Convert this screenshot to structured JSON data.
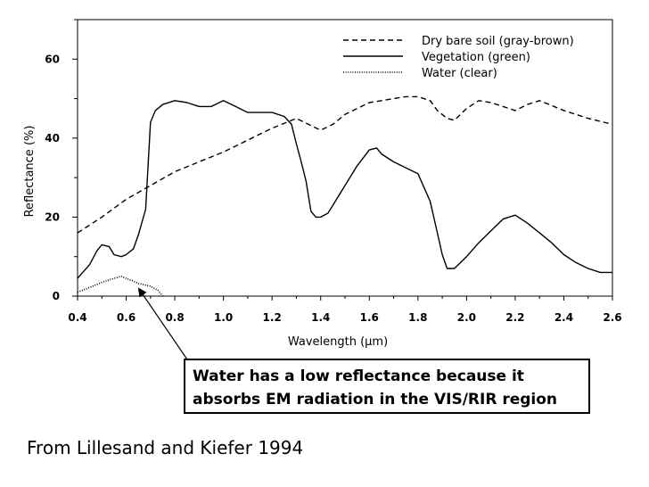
{
  "chart_data": {
    "type": "line",
    "title": "",
    "xlabel": "Wavelength (µm)",
    "ylabel": "Reflectance (%)",
    "xlim": [
      0.4,
      2.6
    ],
    "ylim": [
      0,
      70
    ],
    "xticks": [
      "0.4",
      "0.6",
      "0.8",
      "1.0",
      "1.2",
      "1.4",
      "1.6",
      "1.8",
      "2.0",
      "2.2",
      "2.4",
      "2.6"
    ],
    "yticks": [
      "0",
      "20",
      "40",
      "60"
    ],
    "legend_position": "top-right",
    "series": [
      {
        "name": "Dry bare soil (gray-brown)",
        "style": "dashed",
        "x": [
          0.4,
          0.5,
          0.6,
          0.7,
          0.8,
          0.9,
          1.0,
          1.1,
          1.2,
          1.3,
          1.35,
          1.4,
          1.45,
          1.5,
          1.6,
          1.7,
          1.75,
          1.8,
          1.85,
          1.88,
          1.92,
          1.95,
          2.0,
          2.05,
          2.1,
          2.15,
          2.2,
          2.25,
          2.3,
          2.4,
          2.5,
          2.6
        ],
        "values": [
          16,
          20,
          24.5,
          28,
          31.5,
          34,
          36.5,
          39.5,
          42.5,
          45,
          43.5,
          42,
          43.5,
          46,
          49,
          50,
          50.5,
          50.5,
          49.5,
          47,
          45,
          44.5,
          47.5,
          49.5,
          49,
          48,
          47,
          48.5,
          49.5,
          47,
          45,
          43.5
        ]
      },
      {
        "name": "Vegetation (green)",
        "style": "solid",
        "x": [
          0.4,
          0.45,
          0.48,
          0.5,
          0.53,
          0.55,
          0.58,
          0.6,
          0.63,
          0.65,
          0.68,
          0.7,
          0.72,
          0.75,
          0.8,
          0.85,
          0.9,
          0.95,
          1.0,
          1.05,
          1.1,
          1.15,
          1.2,
          1.25,
          1.28,
          1.3,
          1.32,
          1.34,
          1.36,
          1.38,
          1.4,
          1.43,
          1.45,
          1.5,
          1.55,
          1.6,
          1.63,
          1.65,
          1.7,
          1.75,
          1.8,
          1.85,
          1.88,
          1.9,
          1.92,
          1.95,
          2.0,
          2.05,
          2.1,
          2.15,
          2.2,
          2.25,
          2.3,
          2.35,
          2.4,
          2.45,
          2.5,
          2.55,
          2.6
        ],
        "values": [
          4.5,
          8,
          11.5,
          13,
          12.5,
          10.5,
          10,
          10.5,
          12,
          15.5,
          22,
          44,
          47,
          48.5,
          49.5,
          49,
          48,
          48,
          49.5,
          48,
          46.5,
          46.5,
          46.5,
          45.5,
          43.5,
          38.5,
          34,
          29,
          21.5,
          20,
          20,
          21,
          23,
          28,
          33,
          37,
          37.5,
          36,
          34,
          32.5,
          31,
          24,
          16,
          10.5,
          7,
          7,
          10,
          13.5,
          16.5,
          19.5,
          20.5,
          18.5,
          16,
          13.5,
          10.5,
          8.5,
          7,
          6,
          6
        ]
      },
      {
        "name": "Water (clear)",
        "style": "dotted",
        "x": [
          0.4,
          0.45,
          0.5,
          0.55,
          0.58,
          0.6,
          0.63,
          0.65,
          0.7,
          0.73,
          0.75
        ],
        "values": [
          1,
          2.2,
          3.5,
          4.5,
          5,
          4.5,
          3.8,
          3.2,
          2.5,
          1.5,
          0
        ]
      }
    ],
    "annotations": [
      {
        "text": "Water has a low reflectance because it absorbs EM radiation in the VIS/RIR region",
        "points_to_x": 0.66,
        "points_to_y": 1
      }
    ]
  },
  "annotation": {
    "line1": "Water has a low reflectance because it",
    "line2": "absorbs EM radiation in the VIS/RIR region"
  },
  "source": "From Lillesand and Kiefer 1994"
}
